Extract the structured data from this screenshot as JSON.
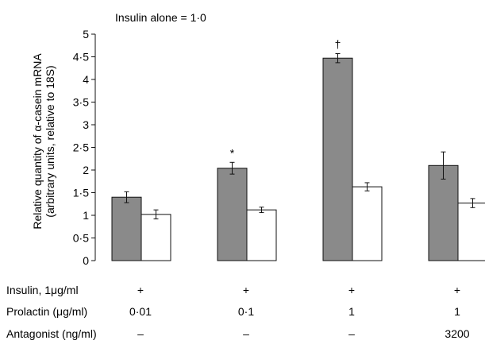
{
  "chart_data": {
    "type": "bar",
    "title": "",
    "annotation": "Insulin alone = 1·0",
    "ylabel_line1": "Relative quantity of α-casein mRNA",
    "ylabel_line2": "(arbitrary units, relative to 18S)",
    "ylim": [
      0,
      5
    ],
    "yticks": [
      0,
      0.5,
      1,
      1.5,
      2,
      2.5,
      3,
      3.5,
      4,
      4.5,
      5
    ],
    "ytick_labels": [
      "0",
      "0·5",
      "1",
      "1·5",
      "2",
      "2·5",
      "3",
      "3·5",
      "4",
      "4·5",
      "5"
    ],
    "grid": false,
    "groups": [
      {
        "markers": "",
        "bars": [
          {
            "fill": "grey",
            "value": 1.4,
            "error": 0.12
          },
          {
            "fill": "white",
            "value": 1.02,
            "error": 0.1
          }
        ]
      },
      {
        "markers": "*",
        "bars": [
          {
            "fill": "grey",
            "value": 2.04,
            "error": 0.13
          },
          {
            "fill": "white",
            "value": 1.12,
            "error": 0.06
          }
        ]
      },
      {
        "markers": "†",
        "bars": [
          {
            "fill": "grey",
            "value": 4.47,
            "error": 0.1
          },
          {
            "fill": "white",
            "value": 1.63,
            "error": 0.09
          }
        ]
      },
      {
        "markers": "",
        "bars": [
          {
            "fill": "grey",
            "value": 2.1,
            "error": 0.3
          },
          {
            "fill": "white",
            "value": 1.27,
            "error": 0.1
          }
        ]
      }
    ],
    "colors": {
      "grey": "#8a8a8a",
      "white": "#ffffff",
      "stroke": "#111111"
    },
    "condition_table": {
      "rows": [
        {
          "label": "Insulin, 1μg/ml",
          "values": [
            "+",
            "+",
            "+",
            "+"
          ]
        },
        {
          "label": "Prolactin (μg/ml)",
          "values": [
            "0·01",
            "0·1",
            "1",
            "1"
          ]
        },
        {
          "label": "Antagonist (ng/ml)",
          "values": [
            "–",
            "–",
            "–",
            "3200"
          ]
        }
      ]
    }
  }
}
